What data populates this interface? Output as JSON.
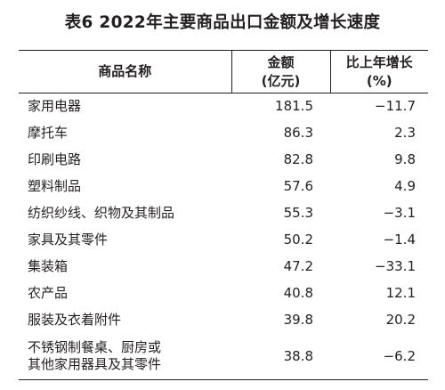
{
  "title": "表6  2022年主要商品出口金额及增长速度",
  "header": {
    "col1": "商品名称",
    "col2_line1": "金额",
    "col2_line2": "(亿元)",
    "col3_line1": "比上年增长",
    "col3_line2": "(%)"
  },
  "rows": [
    {
      "name": "家用电器",
      "value": "181.5",
      "growth": "−11.7"
    },
    {
      "name": "摩托车",
      "value": "86.3",
      "growth": "2.3"
    },
    {
      "name": "印刷电路",
      "value": "82.8",
      "growth": "9.8"
    },
    {
      "name": "塑料制品",
      "value": "57.6",
      "growth": "4.9"
    },
    {
      "name": "纺织纱线、织物及其制品",
      "value": "55.3",
      "growth": "−3.1"
    },
    {
      "name": "家具及其零件",
      "value": "50.2",
      "growth": "−1.4"
    },
    {
      "name": "集装箱",
      "value": "47.2",
      "growth": "−33.1"
    },
    {
      "name": "农产品",
      "value": "40.8",
      "growth": "12.1"
    },
    {
      "name": "服装及衣着附件",
      "value": "39.8",
      "growth": "20.2"
    },
    {
      "name_line1": "不锈钢制餐桌、厨房或",
      "name_line2": "其他家用器具及其零件",
      "value": "38.8",
      "growth": "−6.2"
    }
  ]
}
